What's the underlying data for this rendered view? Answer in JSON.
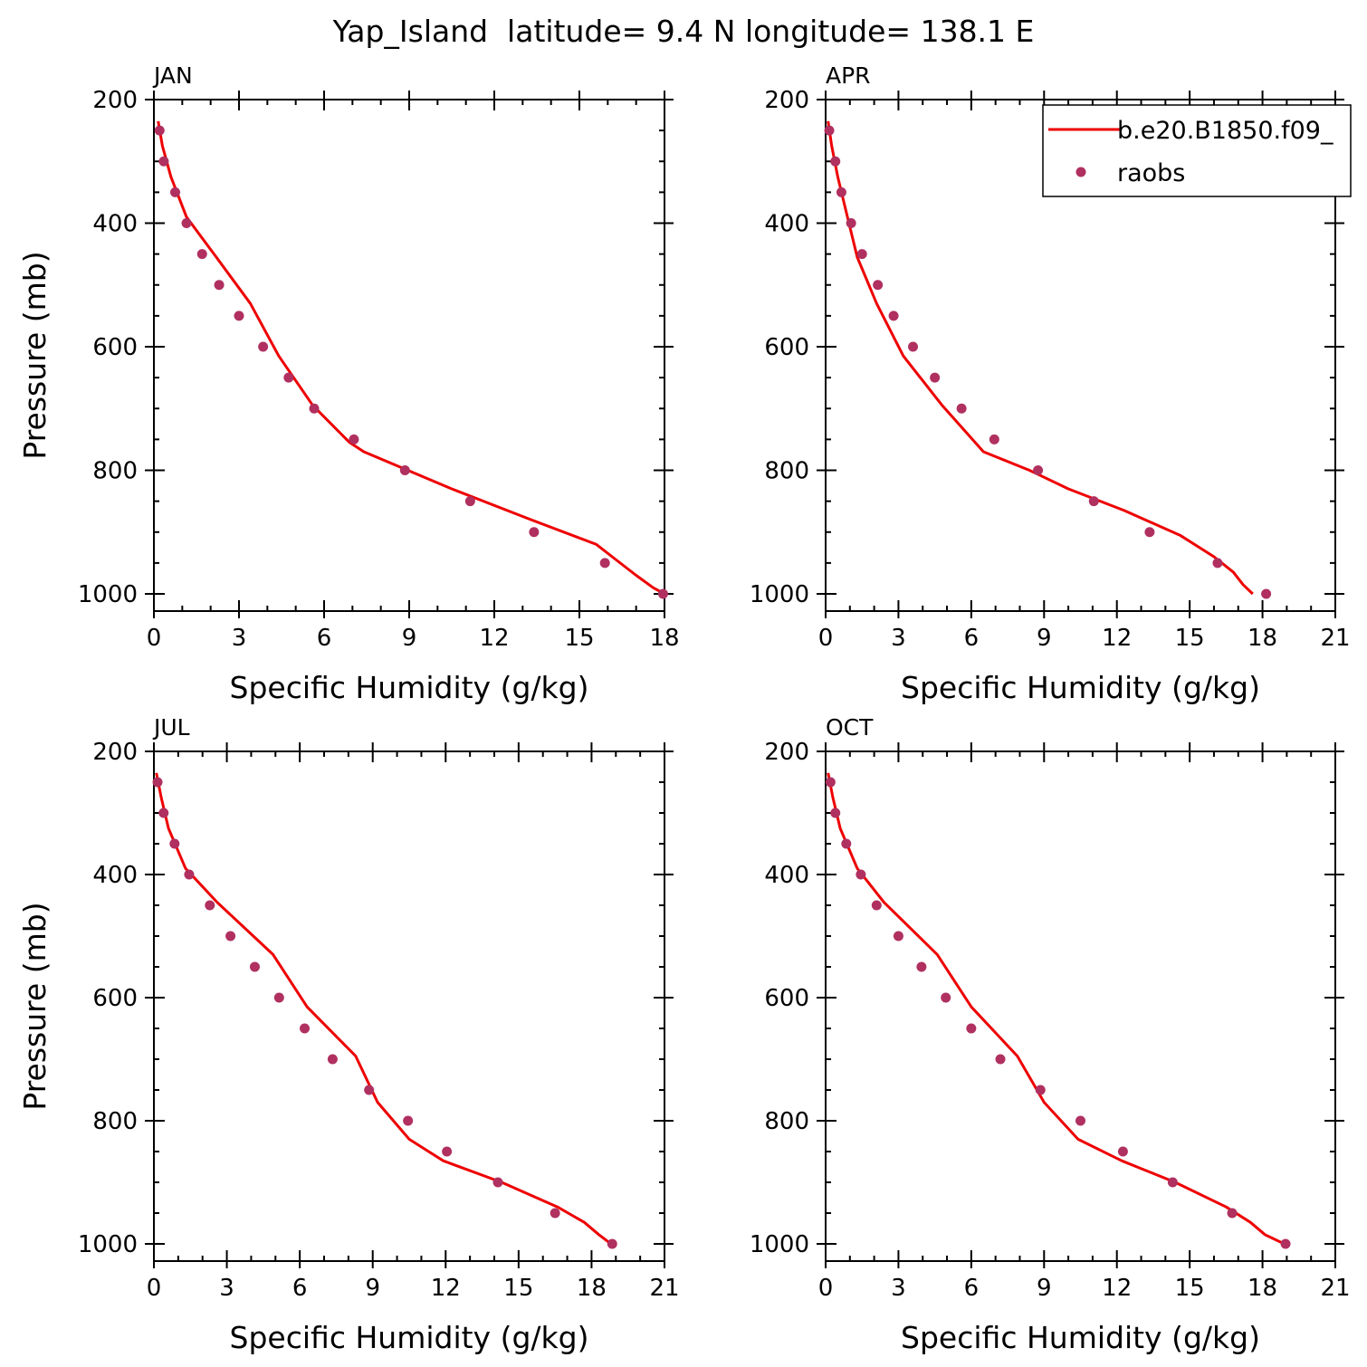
{
  "figure": {
    "title": "Yap_Island  latitude= 9.4 N longitude= 138.1 E"
  },
  "legend": {
    "placement": "top-right of APR panel",
    "model_label": "b.e20.B1850.f09_",
    "obs_label": "raobs"
  },
  "colors": {
    "model_line": "#ee0000",
    "obs_marker": "#b03060"
  },
  "chart_data": [
    {
      "type": "line",
      "panel_label": "JAN",
      "xlabel": "Specific Humidity (g/kg)",
      "ylabel": "Pressure (mb)",
      "xlim": [
        0,
        18
      ],
      "ylim": [
        1000,
        200
      ],
      "y_reversed": true,
      "x_ticks": [
        0,
        3,
        6,
        9,
        12,
        15,
        18
      ],
      "y_ticks": [
        200,
        400,
        600,
        800,
        1000
      ],
      "series": [
        {
          "name": "b.e20.B1850.f09_",
          "kind": "line",
          "x": [
            0.15,
            0.3,
            0.6,
            1.15,
            2.2,
            3.4,
            4.4,
            5.6,
            6.9,
            7.4,
            10.5,
            13.3,
            15.6,
            16.3,
            17.0,
            17.6,
            18.0
          ],
          "y": [
            235,
            275,
            325,
            390,
            455,
            530,
            615,
            695,
            755,
            770,
            830,
            880,
            920,
            945,
            970,
            990,
            1000
          ]
        },
        {
          "name": "raobs",
          "kind": "scatter",
          "x": [
            0.2,
            0.35,
            0.75,
            1.15,
            1.7,
            2.3,
            3.0,
            3.85,
            4.75,
            5.65,
            7.05,
            8.85,
            11.15,
            13.4,
            15.9,
            17.95
          ],
          "y": [
            250,
            300,
            350,
            400,
            450,
            500,
            550,
            600,
            650,
            700,
            750,
            800,
            850,
            900,
            950,
            1000
          ]
        }
      ]
    },
    {
      "type": "line",
      "panel_label": "APR",
      "xlabel": "Specific Humidity (g/kg)",
      "ylabel": "",
      "xlim": [
        0,
        21
      ],
      "ylim": [
        1000,
        200
      ],
      "y_reversed": true,
      "x_ticks": [
        0,
        3,
        6,
        9,
        12,
        15,
        18,
        21
      ],
      "y_ticks": [
        200,
        400,
        600,
        800,
        1000
      ],
      "series": [
        {
          "name": "b.e20.B1850.f09_",
          "kind": "line",
          "x": [
            0.1,
            0.25,
            0.5,
            0.9,
            1.3,
            2.1,
            3.2,
            4.8,
            6.5,
            8.4,
            10.0,
            12.3,
            14.6,
            16.0,
            16.8,
            17.2,
            17.6
          ],
          "y": [
            235,
            275,
            325,
            390,
            455,
            530,
            615,
            695,
            770,
            800,
            830,
            865,
            905,
            940,
            965,
            985,
            1000
          ]
        },
        {
          "name": "raobs",
          "kind": "scatter",
          "x": [
            0.15,
            0.4,
            0.65,
            1.05,
            1.5,
            2.15,
            2.8,
            3.6,
            4.5,
            5.6,
            6.95,
            8.75,
            11.05,
            13.35,
            16.15,
            18.15
          ],
          "y": [
            250,
            300,
            350,
            400,
            450,
            500,
            550,
            600,
            650,
            700,
            750,
            800,
            850,
            900,
            950,
            1000
          ]
        }
      ]
    },
    {
      "type": "line",
      "panel_label": "JUL",
      "xlabel": "Specific Humidity (g/kg)",
      "ylabel": "Pressure (mb)",
      "xlim": [
        0,
        21
      ],
      "ylim": [
        1000,
        200
      ],
      "y_reversed": true,
      "x_ticks": [
        0,
        3,
        6,
        9,
        12,
        15,
        18,
        21
      ],
      "y_ticks": [
        200,
        400,
        600,
        800,
        1000
      ],
      "series": [
        {
          "name": "b.e20.B1850.f09_",
          "kind": "line",
          "x": [
            0.1,
            0.3,
            0.6,
            1.3,
            2.6,
            4.9,
            6.3,
            8.3,
            9.2,
            10.5,
            11.9,
            14.3,
            16.6,
            17.7,
            18.3,
            18.8
          ],
          "y": [
            235,
            275,
            325,
            390,
            445,
            530,
            615,
            695,
            770,
            830,
            865,
            900,
            940,
            965,
            985,
            1000
          ]
        },
        {
          "name": "raobs",
          "kind": "scatter",
          "x": [
            0.15,
            0.4,
            0.85,
            1.45,
            2.3,
            3.15,
            4.15,
            5.15,
            6.2,
            7.35,
            8.85,
            10.45,
            12.05,
            14.15,
            16.5,
            18.85
          ],
          "y": [
            250,
            300,
            350,
            400,
            450,
            500,
            550,
            600,
            650,
            700,
            750,
            800,
            850,
            900,
            950,
            1000
          ]
        }
      ]
    },
    {
      "type": "line",
      "panel_label": "OCT",
      "xlabel": "Specific Humidity (g/kg)",
      "ylabel": "",
      "xlim": [
        0,
        21
      ],
      "ylim": [
        1000,
        200
      ],
      "y_reversed": true,
      "x_ticks": [
        0,
        3,
        6,
        9,
        12,
        15,
        18,
        21
      ],
      "y_ticks": [
        200,
        400,
        600,
        800,
        1000
      ],
      "series": [
        {
          "name": "b.e20.B1850.f09_",
          "kind": "line",
          "x": [
            0.1,
            0.3,
            0.6,
            1.3,
            2.4,
            4.6,
            6.0,
            7.9,
            9.0,
            10.4,
            12.2,
            14.4,
            16.5,
            17.5,
            18.1,
            18.9
          ],
          "y": [
            235,
            275,
            325,
            390,
            445,
            530,
            615,
            695,
            770,
            830,
            865,
            900,
            940,
            965,
            985,
            1000
          ]
        },
        {
          "name": "raobs",
          "kind": "scatter",
          "x": [
            0.2,
            0.4,
            0.85,
            1.45,
            2.1,
            3.0,
            3.95,
            4.95,
            6.0,
            7.2,
            8.85,
            10.5,
            12.25,
            14.3,
            16.75,
            18.95
          ],
          "y": [
            250,
            300,
            350,
            400,
            450,
            500,
            550,
            600,
            650,
            700,
            750,
            800,
            850,
            900,
            950,
            1000
          ]
        }
      ]
    }
  ]
}
